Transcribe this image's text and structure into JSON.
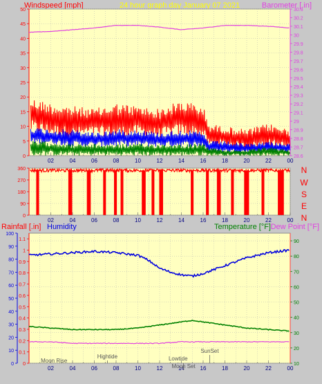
{
  "colors": {
    "background": "#c8c8c8",
    "plot_bg": "#ffffc0",
    "grid": "#b4b4b4",
    "wind_gust": "#ff0000",
    "wind_avg": "#0000ff",
    "wind_low": "#008000",
    "barometer": "#e040e0",
    "direction": "#ff0000",
    "humidity": "#0000e0",
    "temperature": "#008000",
    "dewpoint": "#e040e0",
    "rain": "#ff0000",
    "left_axis": "#ff0000",
    "right_axis": "#ff4040",
    "header": "#ffff00",
    "annotation": "#555555"
  },
  "header": {
    "left": "Windspeed [mph]",
    "center": "24 hour graph day   January 07 2021",
    "right": "Barometer [.in]"
  },
  "panel3_header": {
    "rain": "Rainfall [.in]",
    "humidity": "Humidity",
    "temperature": "Temperature [°F]",
    "dewpoint": "Dew Point [°F]"
  },
  "direction_letters": [
    "N",
    "W",
    "S",
    "E",
    "N"
  ],
  "annotations": {
    "moonrise": "Moon Rise",
    "hightide": "Hightide",
    "lowtide": "Lowtide",
    "moonset": "Moon Set",
    "sunset": "SunSet"
  },
  "chart_data": [
    {
      "type": "line",
      "x_ticks": [
        "02",
        "04",
        "06",
        "08",
        "10",
        "12",
        "14",
        "16",
        "18",
        "20",
        "22",
        "00"
      ],
      "xlim": [
        0,
        24
      ],
      "y_left": {
        "label": "Windspeed [mph]",
        "ylim": [
          0,
          50
        ],
        "ticks": [
          0,
          5,
          10,
          15,
          20,
          25,
          30,
          35,
          40,
          45,
          50
        ]
      },
      "y_right": {
        "label": "Barometer [.in]",
        "ylim": [
          28.6,
          30.3
        ],
        "ticks": [
          "28.6",
          "28.7",
          "28.8",
          "28.9",
          "29",
          "29.1",
          "29.2",
          "29.3",
          "29.4",
          "29.5",
          "29.6",
          "29.7",
          "29.8",
          "29.9",
          "30",
          "30.1",
          "30.2",
          "30.3"
        ]
      },
      "grid": true,
      "series": [
        {
          "name": "Barometer",
          "axis": "right",
          "x": [
            0,
            2,
            4,
            6,
            8,
            10,
            12,
            14,
            16,
            18,
            20,
            22,
            24
          ],
          "y": [
            30.03,
            30.04,
            30.06,
            30.08,
            30.11,
            30.11,
            30.09,
            30.06,
            30.08,
            30.11,
            30.11,
            30.1,
            30.08
          ]
        },
        {
          "axis": "left",
          "band": "gust",
          "x": [
            0,
            2,
            4,
            6,
            8,
            10,
            12,
            14,
            16,
            16.5,
            18,
            20,
            22,
            24
          ],
          "min": [
            8,
            7,
            6,
            7,
            6,
            7,
            6,
            7,
            6,
            3,
            3,
            2,
            3,
            2
          ],
          "max": [
            20,
            18,
            17,
            16,
            18,
            17,
            16,
            19,
            17,
            11,
            10,
            9,
            11,
            9
          ]
        },
        {
          "axis": "left",
          "band": "avg",
          "x": [
            0,
            2,
            4,
            6,
            8,
            10,
            12,
            14,
            16,
            16.5,
            18,
            20,
            22,
            24
          ],
          "min": [
            4,
            4,
            3,
            3,
            3,
            3,
            3,
            3,
            3,
            1,
            1,
            1,
            1,
            1
          ],
          "max": [
            10,
            9,
            9,
            8,
            9,
            9,
            8,
            9,
            8,
            5,
            5,
            4,
            5,
            4
          ]
        },
        {
          "axis": "left",
          "band": "low",
          "x": [
            0,
            2,
            4,
            6,
            8,
            10,
            12,
            14,
            16,
            16.5,
            18,
            20,
            22,
            24
          ],
          "min": [
            0,
            0,
            0,
            0,
            0,
            0,
            0,
            0,
            0,
            0,
            0,
            0,
            0,
            0
          ],
          "max": [
            5,
            5,
            4,
            4,
            4,
            4,
            4,
            4,
            4,
            3,
            2,
            2,
            3,
            2
          ]
        }
      ]
    },
    {
      "type": "line",
      "x_ticks": [
        "02",
        "04",
        "06",
        "08",
        "10",
        "12",
        "14",
        "16",
        "18",
        "20",
        "22",
        "00"
      ],
      "xlim": [
        0,
        24
      ],
      "y_left": {
        "label": "",
        "ylim": [
          0,
          360
        ],
        "ticks": [
          0,
          90,
          180,
          270,
          360
        ]
      },
      "grid": true,
      "series": [
        {
          "axis": "left",
          "kind": "direction",
          "base_band": [
            330,
            355
          ],
          "dips": [
            {
              "x": 0.7,
              "w": 0.2
            },
            {
              "x": 3.6,
              "w": 0.3
            },
            {
              "x": 5.3,
              "w": 0.3
            },
            {
              "x": 6.8,
              "w": 0.2
            },
            {
              "x": 7.8,
              "w": 0.2
            },
            {
              "x": 8.4,
              "w": 0.2
            },
            {
              "x": 10.4,
              "w": 0.3
            },
            {
              "x": 11.3,
              "w": 0.2
            },
            {
              "x": 12.0,
              "w": 0.3
            },
            {
              "x": 14.9,
              "w": 0.2
            },
            {
              "x": 16.3,
              "w": 0.2
            },
            {
              "x": 17.3,
              "w": 0.3
            },
            {
              "x": 18.6,
              "w": 0.2
            },
            {
              "x": 19.8,
              "w": 0.4
            },
            {
              "x": 21.4,
              "w": 0.2
            },
            {
              "x": 22.9,
              "w": 0.5
            }
          ]
        }
      ]
    },
    {
      "type": "line",
      "x_ticks": [
        "02",
        "04",
        "06",
        "08",
        "10",
        "12",
        "14",
        "16",
        "18",
        "20",
        "22",
        "00"
      ],
      "xlim": [
        0,
        24
      ],
      "y_left_outer": {
        "label": "Rainfall [.in]",
        "ylim": [
          0,
          100
        ],
        "ticks": [
          0,
          10,
          20,
          30,
          40,
          50,
          60,
          70,
          80,
          90,
          100
        ]
      },
      "y_left_inner": {
        "label": "Humidity",
        "ylim": [
          0,
          1.15
        ],
        "ticks": [
          "0",
          "0.1",
          "0.2",
          "0.3",
          "0.4",
          "0.5",
          "0.6",
          "0.7",
          "0.8",
          "0.9",
          "1",
          "1.1"
        ]
      },
      "y_right": {
        "label": "Temperature [°F]",
        "ylim": [
          10,
          95
        ],
        "ticks": [
          10,
          20,
          30,
          40,
          50,
          60,
          70,
          80,
          90
        ]
      },
      "grid": true,
      "series": [
        {
          "name": "Humidity",
          "axis": "left_outer",
          "x": [
            0,
            2,
            4,
            6,
            8,
            10,
            11,
            12,
            13,
            14,
            15,
            16,
            17,
            18,
            20,
            22,
            24
          ],
          "y": [
            83,
            84,
            85,
            86,
            85,
            83,
            79,
            73,
            70,
            68,
            67,
            69,
            72,
            75,
            81,
            85,
            87
          ]
        },
        {
          "name": "Temperature",
          "axis": "right",
          "x": [
            0,
            2,
            4,
            6,
            8,
            10,
            12,
            14,
            15,
            16,
            18,
            20,
            22,
            24
          ],
          "y": [
            34,
            33,
            32,
            32,
            32,
            33,
            35,
            37,
            38,
            37,
            35,
            33,
            32,
            31
          ]
        },
        {
          "name": "Dew Point",
          "axis": "right",
          "x": [
            0,
            2,
            4,
            6,
            8,
            10,
            12,
            14,
            16,
            18,
            20,
            22,
            24
          ],
          "y": [
            24,
            24,
            23,
            23,
            23,
            23,
            23,
            24,
            24,
            24,
            24,
            24,
            24
          ]
        }
      ],
      "markers": [
        {
          "key": "moonrise",
          "x": 2.3
        },
        {
          "key": "hightide",
          "x": 7.2
        },
        {
          "key": "lowtide",
          "x": 13.7
        },
        {
          "key": "moonset",
          "x": 14.2
        },
        {
          "key": "sunset",
          "x": 16.6
        }
      ]
    }
  ]
}
